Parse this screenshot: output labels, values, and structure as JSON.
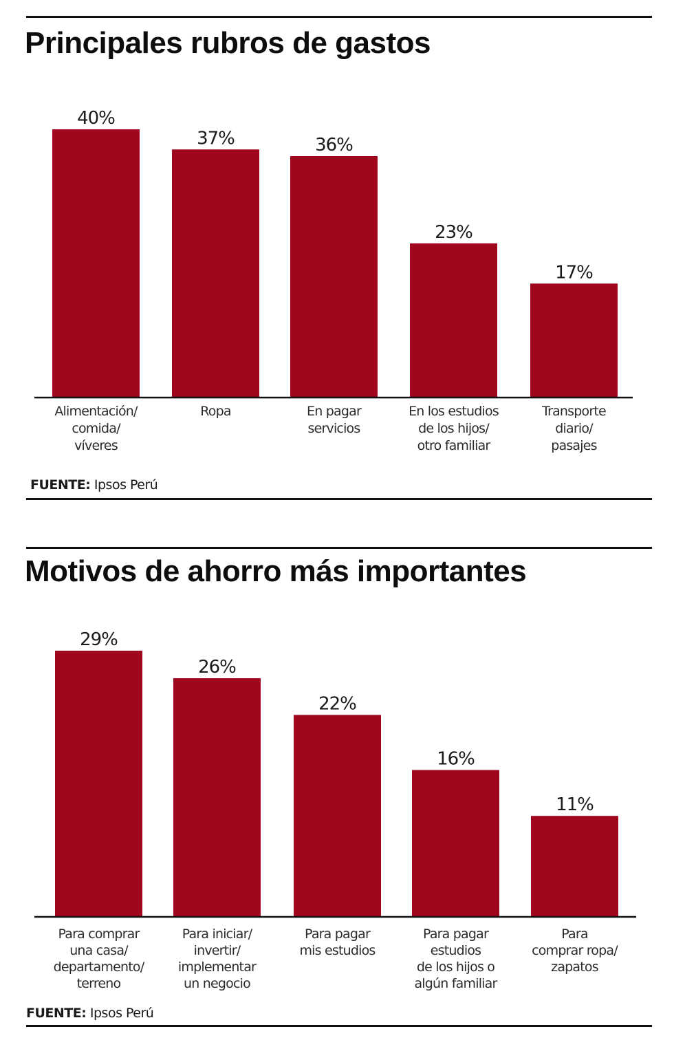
{
  "chart_data": [
    {
      "type": "bar",
      "title": "Principales rubros de gastos",
      "xlabel": "",
      "ylabel": "",
      "ylim": [
        0,
        40
      ],
      "grid": false,
      "categories": [
        "Alimentación/ comida/ víveres",
        "Ropa",
        "En pagar servicios",
        "En los estudios de los hijos/ otro familiar",
        "Transporte diario/ pasajes"
      ],
      "category_lines": [
        [
          "Alimentación/",
          "comida/",
          "víveres"
        ],
        [
          "Ropa"
        ],
        [
          "En pagar",
          "servicios"
        ],
        [
          "En los estudios",
          "de los hijos/",
          "otro familiar"
        ],
        [
          "Transporte",
          "diario/",
          "pasajes"
        ]
      ],
      "values": [
        40,
        37,
        36,
        23,
        17
      ],
      "value_labels": [
        "40%",
        "37%",
        "36%",
        "23%",
        "17%"
      ],
      "color": "#a0061e",
      "source_label": "FUENTE:",
      "source_value": "Ipsos Perú"
    },
    {
      "type": "bar",
      "title": "Motivos de ahorro más importantes",
      "xlabel": "",
      "ylabel": "",
      "ylim": [
        0,
        29
      ],
      "grid": false,
      "categories": [
        "Para comprar una casa/ departamento/ terreno",
        "Para iniciar/ invertir/ implementar un negocio",
        "Para pagar mis estudios",
        "Para pagar estudios de los hijos o algún familiar",
        "Para comprar ropa/ zapatos"
      ],
      "category_lines": [
        [
          "Para comprar",
          "una casa/",
          "departamento/",
          "terreno"
        ],
        [
          "Para iniciar/",
          "invertir/",
          "implementar",
          "un negocio"
        ],
        [
          "Para pagar",
          "mis estudios"
        ],
        [
          "Para pagar",
          "estudios",
          "de los hijos o",
          "algún familiar"
        ],
        [
          "Para",
          "comprar ropa/",
          "zapatos"
        ]
      ],
      "values": [
        29,
        26,
        22,
        16,
        11
      ],
      "value_labels": [
        "29%",
        "26%",
        "22%",
        "16%",
        "11%"
      ],
      "color": "#a0061e",
      "source_label": "FUENTE:",
      "source_value": "Ipsos Perú"
    }
  ]
}
